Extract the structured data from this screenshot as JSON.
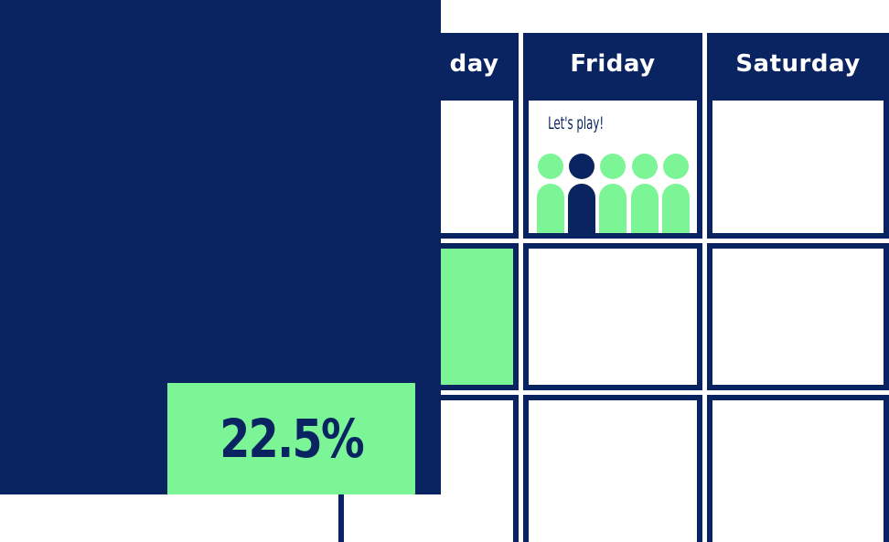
{
  "calendar": {
    "headers": [
      "day",
      "Friday",
      "Saturday"
    ]
  },
  "event": {
    "label": "Let's play!",
    "figures": [
      "green",
      "navy",
      "green",
      "green",
      "green"
    ]
  },
  "stat": {
    "value": "22.5%"
  },
  "colors": {
    "navy": "#0a2361",
    "green": "#7cf597",
    "white": "#ffffff"
  }
}
